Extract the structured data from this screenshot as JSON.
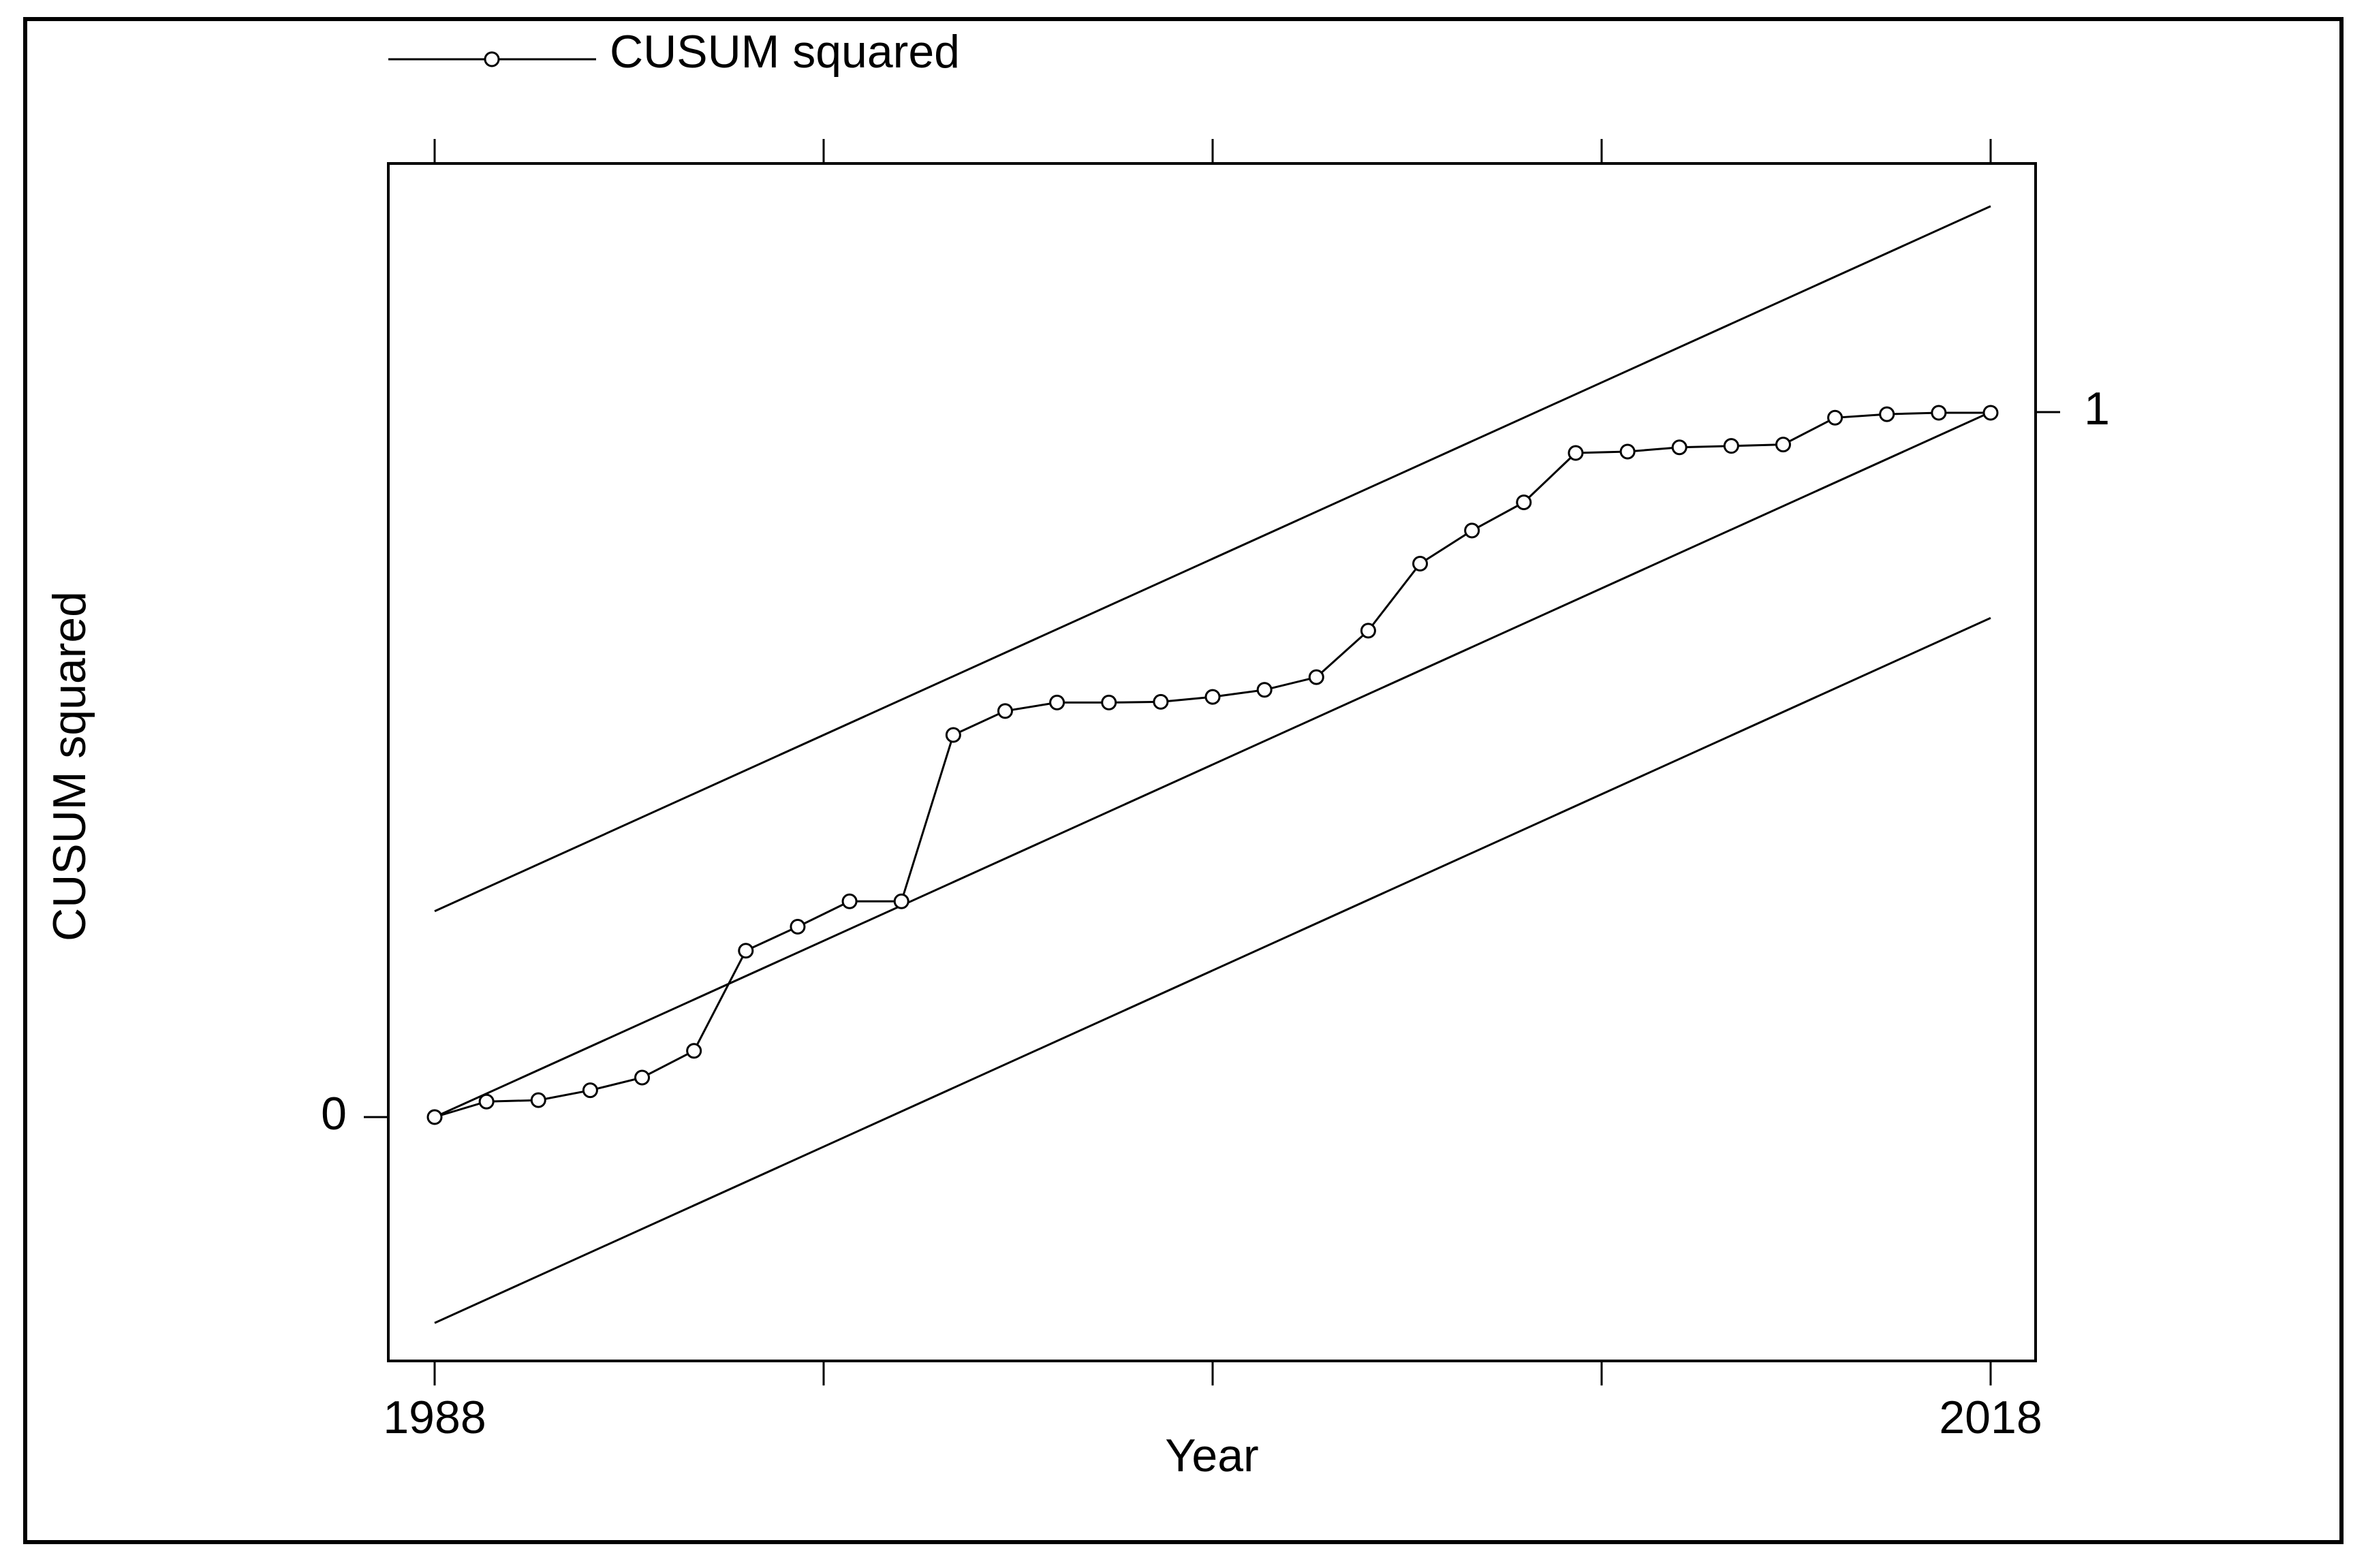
{
  "chart_data": {
    "type": "line",
    "title": "",
    "xlabel": "Year",
    "ylabel": "CUSUM squared",
    "legend": {
      "placement": "top-left",
      "label": "CUSUM squared"
    },
    "grid": false,
    "xlim": [
      1988,
      2018
    ],
    "ylim": [
      -0.295,
      1.255
    ],
    "x_tick_labels": [
      "1988",
      "2018"
    ],
    "x_ticks": [
      1988,
      1995.5,
      2003,
      2010.5,
      2018
    ],
    "y_ticks": [
      {
        "value": 0,
        "label": "0",
        "side": "left"
      },
      {
        "value": 1,
        "label": "1",
        "side": "right"
      }
    ],
    "series": [
      {
        "name": "CUSUM squared",
        "marker": "circle",
        "x": [
          1988,
          1989,
          1990,
          1991,
          1992,
          1993,
          1994,
          1995,
          1996,
          1997,
          1998,
          1999,
          2000,
          2001,
          2002,
          2003,
          2004,
          2005,
          2006,
          2007,
          2008,
          2009,
          2010,
          2011,
          2012,
          2013,
          2014,
          2015,
          2016,
          2017,
          2018
        ],
        "values": [
          0.0,
          0.022,
          0.024,
          0.038,
          0.056,
          0.094,
          0.236,
          0.27,
          0.306,
          0.306,
          0.542,
          0.576,
          0.588,
          0.588,
          0.589,
          0.596,
          0.606,
          0.624,
          0.69,
          0.785,
          0.832,
          0.872,
          0.942,
          0.944,
          0.95,
          0.952,
          0.954,
          0.992,
          0.997,
          0.999,
          0.999
        ]
      },
      {
        "role": "upper bound",
        "x": [
          1988,
          2018
        ],
        "values": [
          0.292,
          1.292
        ]
      },
      {
        "role": "expected",
        "x": [
          1988,
          2018
        ],
        "values": [
          0.0,
          1.0
        ]
      },
      {
        "role": "lower bound",
        "x": [
          1988,
          2018
        ],
        "values": [
          -0.292,
          0.708
        ]
      }
    ]
  }
}
